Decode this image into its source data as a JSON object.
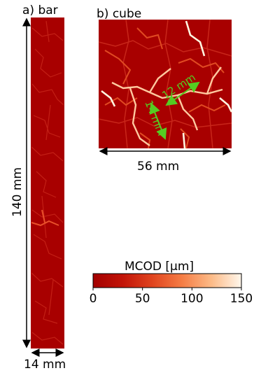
{
  "panels": {
    "bar": {
      "label": "a) bar",
      "height_label": "140 mm",
      "width_label": "14 mm"
    },
    "cube": {
      "label": "b) cube",
      "width_label": "56 mm",
      "crack_label_a": "14 mm",
      "crack_label_b": "12 mm"
    }
  },
  "colorbar": {
    "title": "MCOD [µm]",
    "ticks": [
      "0",
      "50",
      "100",
      "150"
    ],
    "range": [
      0,
      150
    ]
  },
  "colors": {
    "background": "#a80000",
    "crack_low": "#d93a1a",
    "crack_high": "#fff5e0",
    "annotation": "#55cc22"
  }
}
